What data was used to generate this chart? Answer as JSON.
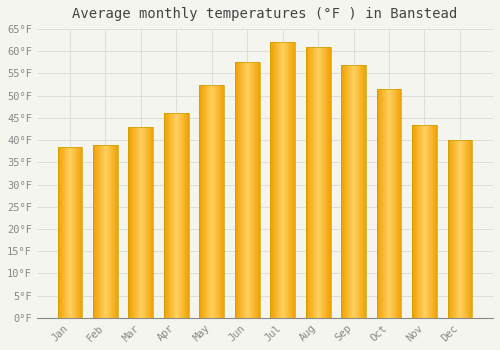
{
  "title": "Average monthly temperatures (°F ) in Banstead",
  "months": [
    "Jan",
    "Feb",
    "Mar",
    "Apr",
    "May",
    "Jun",
    "Jul",
    "Aug",
    "Sep",
    "Oct",
    "Nov",
    "Dec"
  ],
  "values": [
    38.5,
    39.0,
    43.0,
    46.0,
    52.5,
    57.5,
    62.0,
    61.0,
    57.0,
    51.5,
    43.5,
    40.0
  ],
  "bar_color_center": "#FFD060",
  "bar_color_edge": "#F0A000",
  "bar_edge_color": "#C8A000",
  "ylim": [
    0,
    65
  ],
  "yticks": [
    0,
    5,
    10,
    15,
    20,
    25,
    30,
    35,
    40,
    45,
    50,
    55,
    60,
    65
  ],
  "background_color": "#F5F5F0",
  "plot_bg_color": "#F5F5F0",
  "grid_color": "#DDDDDD",
  "title_fontsize": 10,
  "tick_fontsize": 7.5,
  "title_font": "monospace",
  "tick_font": "monospace",
  "tick_color": "#888888",
  "title_color": "#444444",
  "bar_width": 0.7
}
